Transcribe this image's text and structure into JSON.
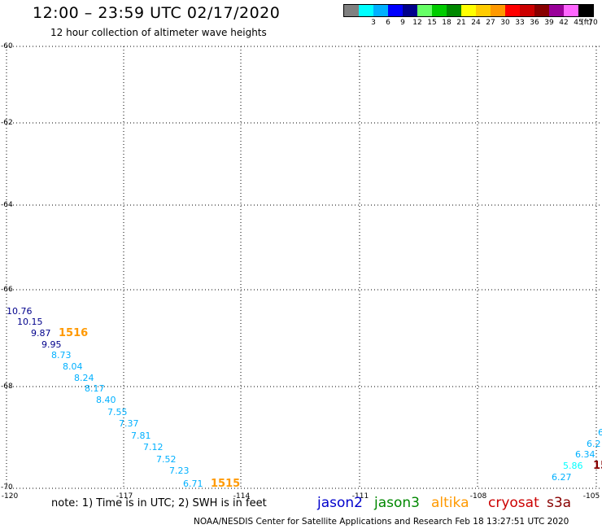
{
  "header": {
    "title": "12:00 – 23:59 UTC 02/17/2020",
    "subtitle": "12 hour collection of altimeter wave heights"
  },
  "legend": {
    "unit": "(ft)",
    "swatches": [
      {
        "value": "",
        "color": "#808080"
      },
      {
        "value": "3",
        "color": "#00ffff"
      },
      {
        "value": "6",
        "color": "#00b0ff"
      },
      {
        "value": "9",
        "color": "#0000ff"
      },
      {
        "value": "12",
        "color": "#00008b"
      },
      {
        "value": "15",
        "color": "#66ff66"
      },
      {
        "value": "18",
        "color": "#00cc00"
      },
      {
        "value": "21",
        "color": "#008800"
      },
      {
        "value": "24",
        "color": "#ffff00"
      },
      {
        "value": "27",
        "color": "#ffcc00"
      },
      {
        "value": "30",
        "color": "#ff9900"
      },
      {
        "value": "33",
        "color": "#ff0000"
      },
      {
        "value": "36",
        "color": "#cc0000"
      },
      {
        "value": "39",
        "color": "#880000"
      },
      {
        "value": "42",
        "color": "#990099"
      },
      {
        "value": "45",
        "color": "#ff66ff"
      },
      {
        "value": "70",
        "color": "#000000"
      }
    ]
  },
  "axes": {
    "lat_labels": [
      "-60",
      "-62",
      "-64",
      "-66",
      "-68",
      "-70"
    ],
    "lon_labels": [
      "-120",
      "-117",
      "-114",
      "-111",
      "-108",
      "-105"
    ]
  },
  "tracks": {
    "west_points": [
      {
        "label": "10.76",
        "color": "#00008b"
      },
      {
        "label": "10.15",
        "color": "#00008b"
      },
      {
        "label": "9.87",
        "color": "#00008b"
      },
      {
        "label": "9.95",
        "color": "#00008b"
      },
      {
        "label": "8.73",
        "color": "#00b0ff"
      },
      {
        "label": "8.04",
        "color": "#00b0ff"
      },
      {
        "label": "8.24",
        "color": "#00b0ff"
      },
      {
        "label": "8.17",
        "color": "#00b0ff"
      },
      {
        "label": "8.40",
        "color": "#00b0ff"
      },
      {
        "label": "7.55",
        "color": "#00b0ff"
      },
      {
        "label": "7.37",
        "color": "#00b0ff"
      },
      {
        "label": "7.81",
        "color": "#00b0ff"
      },
      {
        "label": "7.12",
        "color": "#00b0ff"
      },
      {
        "label": "7.52",
        "color": "#00b0ff"
      },
      {
        "label": "7.23",
        "color": "#00b0ff"
      },
      {
        "label": "6.71",
        "color": "#00b0ff"
      }
    ],
    "east_points": [
      {
        "label": "6",
        "color": "#00b0ff"
      },
      {
        "label": "6.2",
        "color": "#00b0ff"
      },
      {
        "label": "6.34",
        "color": "#00b0ff"
      },
      {
        "label": "5.86",
        "color": "#00ffff"
      },
      {
        "label": "6.27",
        "color": "#00b0ff"
      }
    ],
    "pass_labels": [
      "1516",
      "1515",
      "15"
    ]
  },
  "footer": {
    "note": "note: 1) Time is in UTC; 2) SWH is in feet",
    "satellites": [
      {
        "name": "jason2",
        "color": "#0000cc"
      },
      {
        "name": "jason3",
        "color": "#008800"
      },
      {
        "name": "altika",
        "color": "#ff9900"
      },
      {
        "name": "cryosat",
        "color": "#cc0000"
      },
      {
        "name": "s3a",
        "color": "#880000"
      }
    ],
    "credit": "NOAA/NESDIS Center for Satellite Applications and Research    Feb 18 13:27:51 UTC 2020"
  }
}
